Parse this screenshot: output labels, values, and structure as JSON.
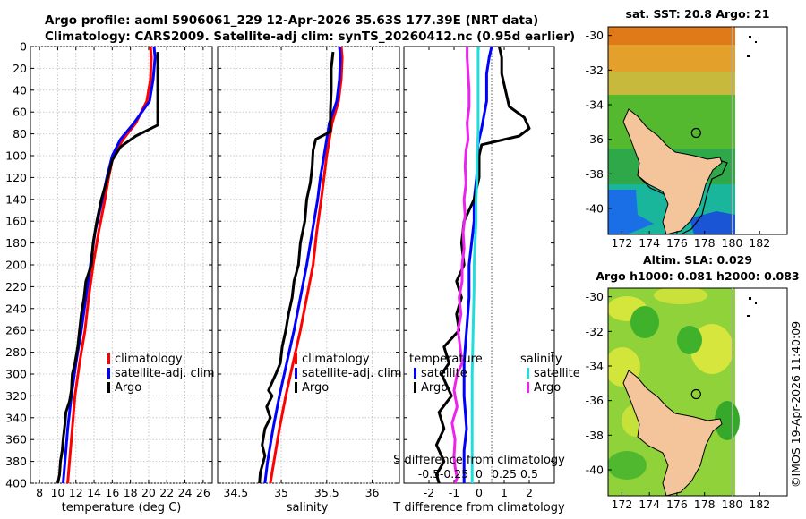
{
  "header": {
    "line1": "Argo profile: aoml 5906061_229 12-Apr-2026 35.63S 177.39E (NRT data)",
    "line2": "Climatology: CARS2009. Satellite-adj clim: synTS_20260412.nc (0.95d earlier)"
  },
  "colors": {
    "climatology": "#ff0000",
    "satellite_adj": "#0000ff",
    "argo": "#000000",
    "salinity_satellite": "#22dddd",
    "salinity_argo": "#ee22ee",
    "land": "#f4c49a"
  },
  "chart_data": [
    {
      "type": "line",
      "name": "temperature-profile",
      "xlabel": "temperature (deg C)",
      "ylabel": "",
      "xlim": [
        7,
        27
      ],
      "ylim": [
        400,
        0
      ],
      "xticks": [
        "8",
        "10",
        "12",
        "14",
        "16",
        "18",
        "20",
        "22",
        "24",
        "26"
      ],
      "xtick_values": [
        8,
        10,
        12,
        14,
        16,
        18,
        20,
        22,
        24,
        26
      ],
      "yticks": [
        "0",
        "20",
        "40",
        "60",
        "80",
        "100",
        "120",
        "140",
        "160",
        "180",
        "200",
        "220",
        "240",
        "260",
        "280",
        "300",
        "320",
        "340",
        "360",
        "380",
        "400"
      ],
      "ytick_values": [
        0,
        20,
        40,
        60,
        80,
        100,
        120,
        140,
        160,
        180,
        200,
        220,
        240,
        260,
        280,
        300,
        320,
        340,
        360,
        380,
        400
      ],
      "grid": true,
      "legend": [
        "climatology",
        "satellite-adj. clim",
        "Argo"
      ],
      "series": [
        {
          "name": "climatology",
          "color": "#ff0000",
          "x": [
            20.2,
            20.3,
            20.2,
            19.8,
            18.6,
            17.2,
            16.1,
            15.6,
            15.2,
            14.5,
            13.9,
            13.4,
            13.0,
            12.4,
            11.9,
            11.6,
            11.3,
            11.1
          ],
          "y": [
            0,
            10,
            30,
            50,
            70,
            85,
            100,
            120,
            140,
            170,
            200,
            230,
            260,
            290,
            320,
            350,
            380,
            400
          ]
        },
        {
          "name": "satellite-adj. clim",
          "color": "#0000ff",
          "x": [
            20.6,
            20.7,
            20.5,
            20.1,
            18.4,
            16.9,
            16.0,
            15.4,
            14.9,
            14.1,
            13.6,
            13.1,
            12.6,
            12.0,
            11.5,
            11.1,
            10.8,
            10.6
          ],
          "y": [
            0,
            10,
            30,
            50,
            70,
            85,
            100,
            120,
            140,
            170,
            200,
            230,
            260,
            290,
            320,
            350,
            380,
            400
          ]
        },
        {
          "name": "Argo",
          "color": "#000000",
          "x": [
            21.0,
            21.0,
            21.0,
            21.0,
            21.0,
            21.0,
            18.6,
            16.9,
            16.0,
            15.5,
            14.8,
            14.3,
            13.9,
            13.7,
            13.1,
            12.9,
            12.6,
            12.4,
            12.2,
            11.9,
            11.6,
            11.5,
            11.3,
            10.9,
            10.8,
            10.6,
            10.5,
            10.3,
            10.2,
            10.0
          ],
          "y": [
            5,
            20,
            40,
            60,
            68,
            72,
            82,
            92,
            104,
            120,
            140,
            160,
            180,
            200,
            215,
            230,
            245,
            260,
            275,
            290,
            300,
            315,
            325,
            335,
            345,
            360,
            370,
            380,
            392,
            400
          ]
        }
      ]
    },
    {
      "type": "line",
      "name": "salinity-profile",
      "xlabel": "salinity",
      "ylabel": "",
      "xlim": [
        34.3,
        36.3
      ],
      "ylim": [
        400,
        0
      ],
      "xticks": [
        "34.5",
        "35",
        "35.5",
        "36"
      ],
      "xtick_values": [
        34.5,
        35,
        35.5,
        36
      ],
      "grid": true,
      "legend": [
        "climatology",
        "satellite-adj. clim",
        "Argo"
      ],
      "series": [
        {
          "name": "climatology",
          "color": "#ff0000",
          "x": [
            35.66,
            35.67,
            35.66,
            35.63,
            35.56,
            35.53,
            35.5,
            35.47,
            35.44,
            35.39,
            35.35,
            35.28,
            35.21,
            35.13,
            35.05,
            34.98,
            34.92,
            34.88
          ],
          "y": [
            0,
            10,
            30,
            50,
            70,
            85,
            100,
            120,
            140,
            170,
            200,
            230,
            260,
            290,
            320,
            350,
            380,
            400
          ]
        },
        {
          "name": "satellite-adj. clim",
          "color": "#0000ff",
          "x": [
            35.64,
            35.65,
            35.64,
            35.61,
            35.53,
            35.5,
            35.47,
            35.43,
            35.4,
            35.34,
            35.28,
            35.21,
            35.14,
            35.06,
            34.98,
            34.91,
            34.85,
            34.82
          ],
          "y": [
            0,
            10,
            30,
            50,
            70,
            85,
            100,
            120,
            140,
            170,
            200,
            230,
            260,
            290,
            320,
            350,
            380,
            400
          ]
        },
        {
          "name": "Argo",
          "color": "#000000",
          "x": [
            35.57,
            35.55,
            35.55,
            35.54,
            35.54,
            35.38,
            35.35,
            35.34,
            35.32,
            35.28,
            35.26,
            35.21,
            35.19,
            35.14,
            35.12,
            35.08,
            35.05,
            35.01,
            34.99,
            34.94,
            34.86,
            34.9,
            34.84,
            34.88,
            34.82,
            34.79,
            34.82,
            34.77,
            34.76
          ],
          "y": [
            5,
            20,
            40,
            60,
            78,
            85,
            95,
            110,
            125,
            140,
            160,
            180,
            200,
            215,
            230,
            245,
            260,
            275,
            290,
            300,
            315,
            320,
            330,
            340,
            350,
            365,
            375,
            390,
            400
          ]
        }
      ]
    },
    {
      "type": "line",
      "name": "difference-profile",
      "xlabel": "T difference from climatology",
      "xlabel_top": "S difference from climatology",
      "xlim": [
        -3,
        3
      ],
      "ylim": [
        400,
        0
      ],
      "xticks": [
        "-2",
        "-1",
        "0",
        "1",
        "2"
      ],
      "xtick_values": [
        -2,
        -1,
        0,
        1,
        2
      ],
      "xticks_salinity": [
        "-0.5",
        "-0.25",
        "0",
        "0.25",
        "0.5"
      ],
      "xticks_salinity_values": [
        -0.5,
        -0.25,
        0,
        0.25,
        0.5
      ],
      "grid": false,
      "legend_temperature_title": "temperature",
      "legend_salinity_title": "salinity",
      "legend_temperature": [
        "satellite",
        "Argo"
      ],
      "legend_salinity": [
        "satellite",
        "Argo"
      ],
      "series": [
        {
          "name": "temperature satellite",
          "color": "#0000ff",
          "x": [
            0.5,
            0.4,
            0.3,
            0.3,
            0.1,
            -0.05,
            -0.05,
            -0.1,
            -0.2,
            -0.2,
            -0.3,
            -0.4,
            -0.4,
            -0.5,
            -0.6,
            -0.6,
            -0.5,
            -0.6,
            -0.6,
            -0.6
          ],
          "y": [
            0,
            10,
            25,
            50,
            75,
            90,
            100,
            120,
            140,
            160,
            180,
            200,
            230,
            260,
            290,
            320,
            350,
            370,
            390,
            400
          ]
        },
        {
          "name": "temperature Argo",
          "color": "#000000",
          "x": [
            0.8,
            0.9,
            0.9,
            1.2,
            1.8,
            2.0,
            1.6,
            0.1,
            0.0,
            0.0,
            -0.2,
            -0.6,
            -0.7,
            -0.6,
            -0.9,
            -0.7,
            -0.9,
            -0.8,
            -1.4,
            -1.2,
            -1.5,
            -1.1,
            -1.6,
            -1.4,
            -1.7,
            -1.4,
            -1.7,
            -1.6
          ],
          "y": [
            0,
            10,
            25,
            55,
            65,
            75,
            82,
            90,
            100,
            120,
            140,
            160,
            180,
            200,
            215,
            230,
            245,
            260,
            275,
            290,
            300,
            320,
            335,
            350,
            365,
            380,
            392,
            400
          ]
        },
        {
          "name": "salinity satellite",
          "color": "#22dddd",
          "x": [
            -0.01,
            -0.01,
            -0.01,
            -0.01,
            -0.01,
            -0.02,
            -0.02,
            -0.03,
            -0.03,
            -0.04,
            -0.05,
            -0.05,
            -0.06,
            -0.07,
            -0.07,
            -0.07,
            -0.07,
            -0.07
          ],
          "y": [
            0,
            20,
            40,
            60,
            80,
            100,
            120,
            140,
            160,
            180,
            200,
            220,
            260,
            300,
            330,
            360,
            380,
            400
          ]
        },
        {
          "name": "salinity Argo",
          "color": "#ee22ee",
          "x": [
            -0.12,
            -0.12,
            -0.11,
            -0.1,
            -0.1,
            -0.12,
            -0.11,
            -0.13,
            -0.14,
            -0.13,
            -0.15,
            -0.14,
            -0.16,
            -0.15,
            -0.17,
            -0.17,
            -0.2,
            -0.18,
            -0.21,
            -0.19,
            -0.17,
            -0.22,
            -0.25,
            -0.22,
            -0.27,
            -0.24,
            -0.25,
            -0.24,
            -0.22,
            -0.24
          ],
          "y": [
            0,
            10,
            25,
            40,
            55,
            70,
            85,
            95,
            110,
            125,
            140,
            155,
            170,
            185,
            200,
            215,
            230,
            245,
            260,
            275,
            290,
            300,
            315,
            330,
            345,
            360,
            375,
            385,
            395,
            400
          ]
        }
      ]
    }
  ],
  "maps": [
    {
      "name": "sst-map",
      "title": "sat. SST: 20.8 Argo: 21",
      "xticks": [
        "172",
        "174",
        "176",
        "178",
        "180",
        "182"
      ],
      "xtick_values": [
        172,
        174,
        176,
        178,
        180,
        182
      ],
      "yticks": [
        "-30",
        "-32",
        "-34",
        "-36",
        "-38",
        "-40"
      ],
      "ytick_values": [
        -30,
        -32,
        -34,
        -36,
        -38,
        -40
      ],
      "xlim": [
        171,
        184
      ],
      "ylim": [
        -41.5,
        -29.5
      ],
      "data_xlim": [
        171.2,
        180.0
      ],
      "float_position": [
        177.39,
        -35.63
      ]
    },
    {
      "name": "sla-map",
      "title_line1": "Altim. SLA: 0.029",
      "title_line2": "Argo h1000: 0.081 h2000: 0.083",
      "xticks": [
        "172",
        "174",
        "176",
        "178",
        "180",
        "182"
      ],
      "xtick_values": [
        172,
        174,
        176,
        178,
        180,
        182
      ],
      "yticks": [
        "-30",
        "-32",
        "-34",
        "-36",
        "-38",
        "-40"
      ],
      "ytick_values": [
        -30,
        -32,
        -34,
        -36,
        -38,
        -40
      ],
      "xlim": [
        171,
        184
      ],
      "ylim": [
        -41.5,
        -29.5
      ],
      "data_xlim": [
        171.2,
        180.0
      ],
      "float_position": [
        177.39,
        -35.63
      ]
    }
  ],
  "credit": "©IMOS 19-Apr-2026 11:40:09"
}
